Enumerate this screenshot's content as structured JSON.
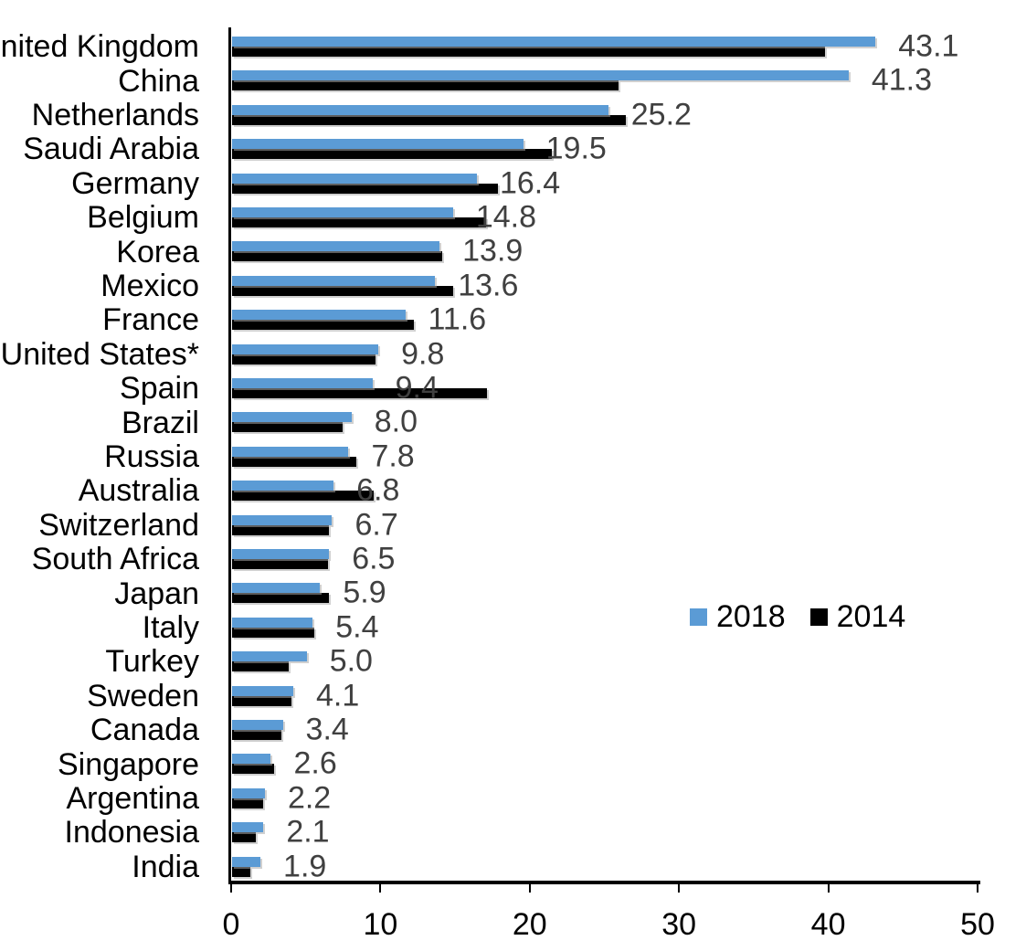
{
  "chart_data": {
    "type": "bar",
    "orientation": "horizontal",
    "title": "",
    "xlabel": "",
    "ylabel": "",
    "categories": [
      "United Kingdom",
      "China",
      "Netherlands",
      "Saudi Arabia",
      "Germany",
      "Belgium",
      "Korea",
      "Mexico",
      "France",
      "United States*",
      "Spain",
      "Brazil",
      "Russia",
      "Australia",
      "Switzerland",
      "South Africa",
      "Japan",
      "Italy",
      "Turkey",
      "Sweden",
      "Canada",
      "Singapore",
      "Argentina",
      "Indonesia",
      "India"
    ],
    "series": [
      {
        "name": "2018",
        "color": "#5B9BD5",
        "values": [
          43.1,
          41.3,
          25.2,
          19.5,
          16.4,
          14.8,
          13.9,
          13.6,
          11.6,
          9.8,
          9.4,
          8.0,
          7.8,
          6.8,
          6.7,
          6.5,
          5.9,
          5.4,
          5.0,
          4.1,
          3.4,
          2.6,
          2.2,
          2.1,
          1.9
        ]
      },
      {
        "name": "2014",
        "color": "#000000",
        "values": [
          39.7,
          25.9,
          26.4,
          21.4,
          17.8,
          17.0,
          14.1,
          14.8,
          12.2,
          9.6,
          17.1,
          7.4,
          8.3,
          9.5,
          6.5,
          6.4,
          6.5,
          5.5,
          3.8,
          4.0,
          3.3,
          2.8,
          2.1,
          1.6,
          1.2
        ]
      }
    ],
    "data_labels": {
      "series": "2018",
      "values": [
        "43.1",
        "41.3",
        "25.2",
        "19.5",
        "16.4",
        "14.8",
        "13.9",
        "13.6",
        "11.6",
        "9.8",
        "9.4",
        "8.0",
        "7.8",
        "6.8",
        "6.7",
        "6.5",
        "5.9",
        "5.4",
        "5.0",
        "4.1",
        "3.4",
        "2.6",
        "2.2",
        "2.1",
        "1.9"
      ],
      "color": "#404040"
    },
    "xlim": [
      0,
      50
    ],
    "x_ticks": [
      "0",
      "10",
      "20",
      "30",
      "40",
      "50"
    ],
    "grid": false,
    "legend": {
      "position": "middle-right",
      "entries": [
        "2018",
        "2014"
      ]
    }
  },
  "colors": {
    "background": "#ffffff",
    "axis": "#000000",
    "category_text": "#000000",
    "tick_text": "#000000",
    "series_2018": "#5B9BD5",
    "series_2014": "#000000",
    "value_label": "#404040"
  }
}
